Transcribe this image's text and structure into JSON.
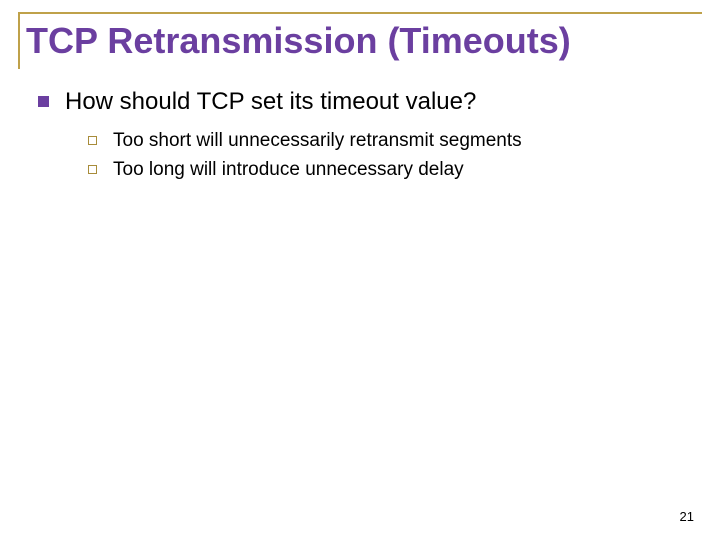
{
  "colors": {
    "title": "#6b3fa0",
    "border": "#bfa14a",
    "bullet_l1": "#6b3fa0",
    "bullet_l2_border": "#a88c3a",
    "body_text": "#000000",
    "pagenum": "#000000",
    "background": "#ffffff"
  },
  "fonts": {
    "title_size": 36,
    "l1_size": 24,
    "l2_size": 19,
    "pagenum_size": 13
  },
  "title": "TCP Retransmission (Timeouts)",
  "bullets": [
    {
      "text": "How should TCP set its timeout value?",
      "sub": [
        "Too short will unnecessarily retransmit segments",
        "Too long will introduce unnecessary delay"
      ]
    }
  ],
  "page_number": "21"
}
